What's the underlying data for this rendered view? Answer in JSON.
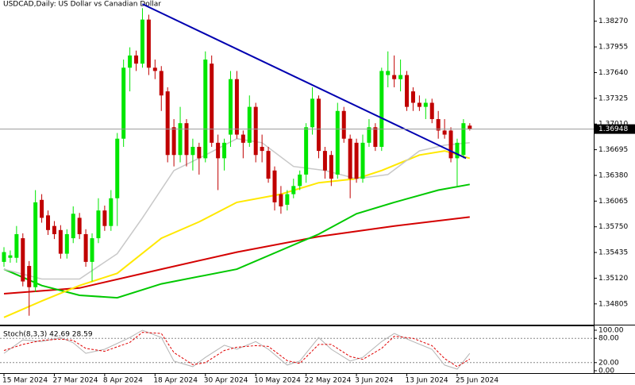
{
  "chart_data": [
    {
      "type": "candlestick",
      "title": "USDCAD,Daily:  US Dollar vs Canadian Dollar",
      "categories": [
        "15 Mar 2024",
        null,
        null,
        null,
        null,
        null,
        null,
        null,
        "27 Mar 2024",
        null,
        null,
        null,
        null,
        null,
        null,
        null,
        "8 Apr 2024",
        null,
        null,
        null,
        null,
        null,
        null,
        null,
        "18 Apr 2024",
        null,
        null,
        null,
        null,
        null,
        null,
        null,
        "30 Apr 2024",
        null,
        null,
        null,
        null,
        null,
        null,
        null,
        "10 May 2024",
        null,
        null,
        null,
        null,
        null,
        null,
        null,
        "22 May 2024",
        null,
        null,
        null,
        null,
        null,
        null,
        null,
        "3 Jun 2024",
        null,
        null,
        null,
        null,
        null,
        null,
        null,
        "13 Jun 2024",
        null,
        null,
        null,
        null,
        null,
        null,
        null,
        "25 Jun 2024",
        null,
        null
      ],
      "open": [
        1.3532,
        1.3537,
        1.3537,
        1.3561,
        1.3527,
        1.3501,
        1.3608,
        1.3589,
        1.3576,
        1.3571,
        1.3542,
        1.3561,
        1.3586,
        1.3566,
        1.3532,
        1.3561,
        1.3595,
        1.3576,
        1.361,
        1.3683,
        1.377,
        1.3785,
        1.3775,
        1.3829,
        1.377,
        1.3766,
        1.3741,
        1.3697,
        1.3663,
        1.3702,
        1.3663,
        1.3673,
        1.3659,
        1.3775,
        1.3678,
        1.3659,
        1.3688,
        1.3756,
        1.3688,
        1.3678,
        1.3722,
        1.3673,
        1.3668,
        1.3644,
        1.3615,
        1.3602,
        1.3615,
        1.3625,
        1.3639,
        1.3697,
        1.3732,
        1.3668,
        1.3663,
        1.3639,
        1.3717,
        1.3683,
        1.3678,
        1.3634,
        1.3678,
        1.3697,
        1.3673,
        1.3761,
        1.3761,
        1.3756,
        1.3761,
        1.3741,
        1.3727,
        1.3722,
        1.3727,
        1.3707,
        1.3693,
        1.3693,
        1.3659,
        1.3663,
        1.3699
      ],
      "high": [
        1.355,
        1.3546,
        1.3576,
        1.3567,
        1.3533,
        1.362,
        1.3615,
        1.3595,
        1.3582,
        1.3577,
        1.3572,
        1.36,
        1.3592,
        1.3572,
        1.3567,
        1.361,
        1.3601,
        1.362,
        1.369,
        1.378,
        1.3795,
        1.3791,
        1.3843,
        1.3835,
        1.378,
        1.3772,
        1.3746,
        1.3707,
        1.3722,
        1.3707,
        1.3683,
        1.3678,
        1.379,
        1.3785,
        1.3688,
        1.3683,
        1.3766,
        1.3766,
        1.3693,
        1.3736,
        1.3727,
        1.3688,
        1.3673,
        1.3649,
        1.3625,
        1.362,
        1.3634,
        1.3644,
        1.3702,
        1.3746,
        1.3736,
        1.3673,
        1.3668,
        1.3727,
        1.3722,
        1.3688,
        1.3683,
        1.3688,
        1.3707,
        1.3702,
        1.377,
        1.379,
        1.3785,
        1.378,
        1.3766,
        1.3746,
        1.3736,
        1.3732,
        1.3732,
        1.3717,
        1.3707,
        1.3697,
        1.3683,
        1.3707,
        1.3702
      ],
      "low": [
        1.3526,
        1.3531,
        1.3531,
        1.3502,
        1.3466,
        1.3495,
        1.358,
        1.3565,
        1.356,
        1.3536,
        1.3536,
        1.3555,
        1.356,
        1.3526,
        1.3508,
        1.3555,
        1.357,
        1.357,
        1.3576,
        1.3673,
        1.3741,
        1.3766,
        1.377,
        1.3761,
        1.3756,
        1.3717,
        1.3654,
        1.3649,
        1.3654,
        1.3649,
        1.3644,
        1.3639,
        1.3654,
        1.3673,
        1.362,
        1.3644,
        1.3673,
        1.3683,
        1.3659,
        1.3673,
        1.3654,
        1.3654,
        1.3629,
        1.3595,
        1.3591,
        1.3595,
        1.361,
        1.362,
        1.3629,
        1.3688,
        1.3659,
        1.3634,
        1.3625,
        1.3634,
        1.3678,
        1.361,
        1.3629,
        1.3629,
        1.3673,
        1.3668,
        1.3668,
        1.3746,
        1.3746,
        1.3741,
        1.3717,
        1.3717,
        1.3717,
        1.3707,
        1.3702,
        1.3683,
        1.3683,
        1.3654,
        1.3625,
        1.3659,
        1.3693
      ],
      "close": [
        1.3544,
        1.354,
        1.3566,
        1.3508,
        1.3501,
        1.3605,
        1.3586,
        1.3571,
        1.3566,
        1.3542,
        1.3566,
        1.3591,
        1.3566,
        1.3532,
        1.3561,
        1.3595,
        1.3576,
        1.361,
        1.3683,
        1.377,
        1.3785,
        1.3775,
        1.3829,
        1.377,
        1.3766,
        1.3736,
        1.3663,
        1.3663,
        1.3702,
        1.3663,
        1.3673,
        1.3659,
        1.378,
        1.3678,
        1.3659,
        1.3678,
        1.3756,
        1.3688,
        1.3678,
        1.3722,
        1.3663,
        1.3668,
        1.3634,
        1.3605,
        1.36,
        1.3615,
        1.3625,
        1.3639,
        1.3697,
        1.3732,
        1.3668,
        1.3644,
        1.3634,
        1.3717,
        1.3683,
        1.3634,
        1.3634,
        1.3678,
        1.3697,
        1.3673,
        1.3766,
        1.3766,
        1.3756,
        1.3761,
        1.3722,
        1.3727,
        1.3722,
        1.3727,
        1.3707,
        1.3693,
        1.3688,
        1.3659,
        1.3678,
        1.3702,
        1.3695
      ],
      "up_color": "#00e600",
      "down_color": "#c00000",
      "lines": [
        {
          "color": "#d40000",
          "x": [
            0,
            12,
            25,
            37,
            50,
            62,
            74
          ],
          "values": [
            1.3493,
            1.35,
            1.3523,
            1.3544,
            1.3563,
            1.3576,
            1.3587
          ]
        },
        {
          "color": "#00c800",
          "x": [
            0,
            6,
            12,
            18,
            25,
            37,
            50,
            56,
            62,
            69,
            74
          ],
          "values": [
            1.3523,
            1.3503,
            1.3491,
            1.3488,
            1.3505,
            1.3523,
            1.3566,
            1.3591,
            1.3605,
            1.362,
            1.3627
          ]
        },
        {
          "color": "#ffe800",
          "x": [
            0,
            6,
            12,
            18,
            25,
            31,
            37,
            44,
            50,
            56,
            60,
            66,
            70,
            74
          ],
          "values": [
            1.3464,
            1.3484,
            1.3503,
            1.3518,
            1.3561,
            1.3581,
            1.3605,
            1.3615,
            1.3629,
            1.3634,
            1.3644,
            1.3663,
            1.3668,
            1.3659
          ]
        },
        {
          "color": "#c8c8c8",
          "x": [
            0,
            6,
            12,
            18,
            22,
            27,
            32,
            37,
            41,
            46,
            51,
            56,
            61,
            66,
            70,
            74
          ],
          "values": [
            1.3523,
            1.3511,
            1.3511,
            1.3542,
            1.3586,
            1.3644,
            1.3663,
            1.3683,
            1.3678,
            1.3649,
            1.3644,
            1.3634,
            1.3639,
            1.3668,
            1.3675,
            1.3678
          ]
        }
      ],
      "trendline": {
        "color": "#0000b0",
        "x": [
          22,
          73.4
        ],
        "values": [
          1.3848,
          1.3659
        ]
      },
      "last_price": {
        "value": 1.36948,
        "label": "1.36948"
      },
      "ylim": [
        1.3456,
        1.3853
      ],
      "yticks": [
        {
          "value": 1.3827,
          "label": "1.38270"
        },
        {
          "value": 1.37955,
          "label": "1.37955"
        },
        {
          "value": 1.3764,
          "label": "1.37640"
        },
        {
          "value": 1.37325,
          "label": "1.37325"
        },
        {
          "value": 1.3701,
          "label": "1.37010"
        },
        {
          "value": 1.36695,
          "label": "1.36695"
        },
        {
          "value": 1.3638,
          "label": "1.36380"
        },
        {
          "value": 1.36065,
          "label": "1.36065"
        },
        {
          "value": 1.3575,
          "label": "1.35750"
        },
        {
          "value": 1.35435,
          "label": "1.35435"
        },
        {
          "value": 1.3512,
          "label": "1.35120"
        },
        {
          "value": 1.34805,
          "label": "1.34805"
        }
      ]
    },
    {
      "type": "line",
      "title": "Stoch(8,3,3) 42.69 28.59",
      "series": [
        {
          "color": "#b4b4b4",
          "x": [
            0,
            3,
            6,
            9,
            11,
            13,
            16,
            20,
            22,
            25,
            27,
            30,
            32,
            35,
            37,
            40,
            42,
            45,
            47,
            50,
            52,
            55,
            57,
            60,
            62,
            65,
            68,
            70,
            72,
            74
          ],
          "values": [
            43,
            76,
            72,
            82,
            69,
            43,
            53,
            82,
            100,
            82,
            24,
            10,
            33,
            63,
            53,
            72,
            53,
            14,
            24,
            82,
            53,
            24,
            33,
            72,
            92,
            72,
            53,
            14,
            4,
            42.69
          ]
        },
        {
          "color": "#e00000",
          "dashed": true,
          "x": [
            0,
            3,
            6,
            9,
            11,
            13,
            16,
            20,
            22,
            25,
            27,
            30,
            32,
            35,
            37,
            40,
            42,
            45,
            47,
            50,
            52,
            55,
            57,
            60,
            62,
            65,
            68,
            70,
            72,
            74
          ],
          "values": [
            50,
            65,
            75,
            78,
            75,
            55,
            48,
            70,
            95,
            92,
            45,
            15,
            20,
            50,
            58,
            62,
            60,
            25,
            18,
            65,
            65,
            35,
            28,
            55,
            85,
            80,
            62,
            30,
            10,
            28.59
          ]
        }
      ],
      "ylim": [
        0,
        100
      ],
      "yticks": [
        {
          "value": 100,
          "label": "100.00"
        },
        {
          "value": 80,
          "label": "80.00"
        },
        {
          "value": 20,
          "label": "20.00"
        },
        {
          "value": 0,
          "label": "0.00"
        }
      ],
      "levels": [
        80,
        20
      ]
    }
  ]
}
